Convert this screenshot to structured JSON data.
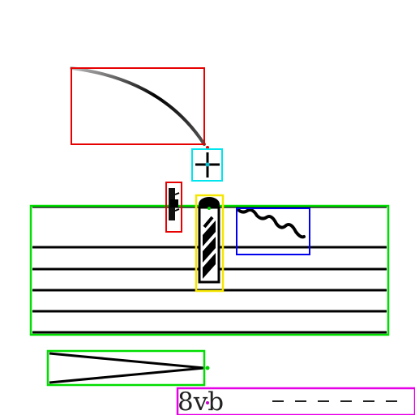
{
  "score": {
    "ottava_label": "8vb",
    "ottava_line_dashes": 6
  },
  "colors": {
    "ink": "#000000",
    "staff_line": "#000000",
    "box_red": "#e60000",
    "box_cyan": "#00e5ee",
    "box_yellow": "#f5e600",
    "box_green": "#00dd00",
    "box_blue": "#0000ee",
    "box_magenta": "#e600e6",
    "marker_green": "#00cc00",
    "marker_cyan": "#00bbcc",
    "marker_magenta": "#cc00cc"
  },
  "annotations": [
    {
      "label": "slur",
      "color": "red"
    },
    {
      "label": "crosshair",
      "color": "cyan"
    },
    {
      "label": "accidental",
      "color": "red"
    },
    {
      "label": "note",
      "color": "yellow"
    },
    {
      "label": "staff",
      "color": "green"
    },
    {
      "label": "trill-wavy-line",
      "color": "blue"
    },
    {
      "label": "decrescendo-hairpin",
      "color": "green"
    },
    {
      "label": "ottava-bassa",
      "color": "magenta"
    }
  ]
}
